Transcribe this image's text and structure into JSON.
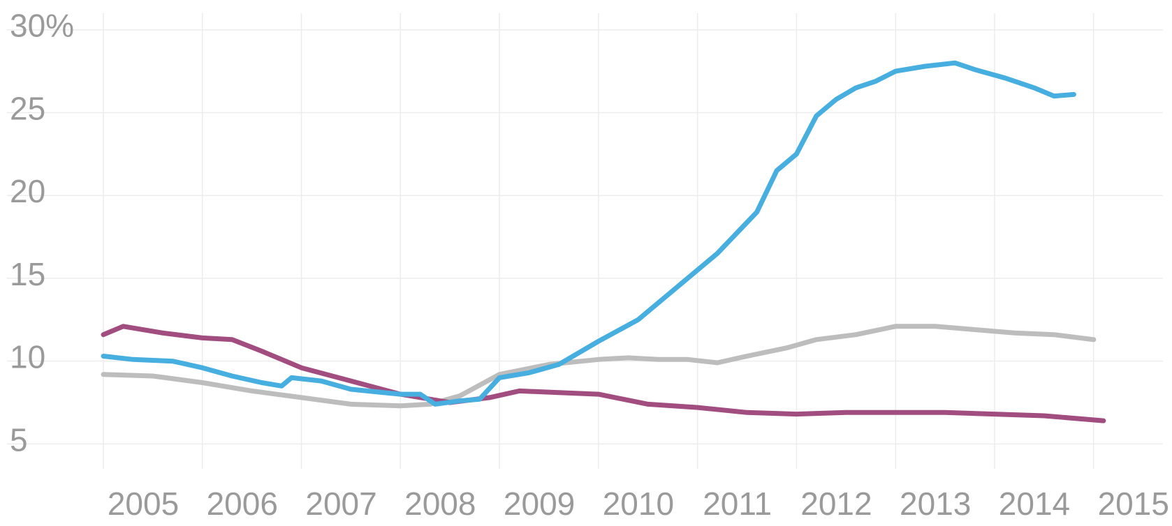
{
  "chart_data": {
    "type": "line",
    "title": "",
    "xlabel": "",
    "ylabel": "",
    "xlim": [
      2005,
      2015.7
    ],
    "ylim": [
      3.5,
      31
    ],
    "grid": true,
    "legend": "none",
    "x_ticks": [
      {
        "value": 2005,
        "label": "2005"
      },
      {
        "value": 2006,
        "label": "2006"
      },
      {
        "value": 2007,
        "label": "2007"
      },
      {
        "value": 2008,
        "label": "2008"
      },
      {
        "value": 2009,
        "label": "2009"
      },
      {
        "value": 2010,
        "label": "2010"
      },
      {
        "value": 2011,
        "label": "2011"
      },
      {
        "value": 2012,
        "label": "2012"
      },
      {
        "value": 2013,
        "label": "2013"
      },
      {
        "value": 2014,
        "label": "2014"
      },
      {
        "value": 2015,
        "label": "2015"
      }
    ],
    "y_ticks": [
      {
        "value": 5,
        "label": "5"
      },
      {
        "value": 10,
        "label": "10"
      },
      {
        "value": 15,
        "label": "15"
      },
      {
        "value": 20,
        "label": "20"
      },
      {
        "value": 25,
        "label": "25"
      },
      {
        "value": 30,
        "label": "30%"
      }
    ],
    "series": [
      {
        "color": "#bdbdbd",
        "x": [
          2005.0,
          2005.5,
          2006.0,
          2006.5,
          2007.0,
          2007.5,
          2008.0,
          2008.3,
          2008.6,
          2009.0,
          2009.5,
          2010.0,
          2010.3,
          2010.6,
          2010.9,
          2011.2,
          2011.5,
          2011.9,
          2012.2,
          2012.6,
          2013.0,
          2013.4,
          2013.8,
          2014.2,
          2014.6,
          2015.0
        ],
        "y": [
          9.2,
          9.1,
          8.7,
          8.2,
          7.8,
          7.4,
          7.3,
          7.4,
          7.9,
          9.2,
          9.8,
          10.1,
          10.2,
          10.1,
          10.1,
          9.9,
          10.3,
          10.8,
          11.3,
          11.6,
          12.1,
          12.1,
          11.9,
          11.7,
          11.6,
          11.3
        ]
      },
      {
        "color": "#a24d80",
        "x": [
          2005.0,
          2005.2,
          2005.6,
          2006.0,
          2006.3,
          2006.6,
          2007.0,
          2007.5,
          2008.0,
          2008.5,
          2008.9,
          2009.2,
          2009.6,
          2010.0,
          2010.5,
          2011.0,
          2011.5,
          2012.0,
          2012.5,
          2013.0,
          2013.5,
          2014.0,
          2014.5,
          2015.1
        ],
        "y": [
          11.6,
          12.1,
          11.7,
          11.4,
          11.3,
          10.6,
          9.6,
          8.8,
          8.0,
          7.5,
          7.8,
          8.2,
          8.1,
          8.0,
          7.4,
          7.2,
          6.9,
          6.8,
          6.9,
          6.9,
          6.9,
          6.8,
          6.7,
          6.4
        ]
      },
      {
        "color": "#47aee0",
        "x": [
          2005.0,
          2005.3,
          2005.7,
          2006.0,
          2006.3,
          2006.6,
          2006.8,
          2006.9,
          2007.2,
          2007.5,
          2008.0,
          2008.2,
          2008.35,
          2008.6,
          2008.8,
          2009.0,
          2009.3,
          2009.6,
          2010.0,
          2010.4,
          2010.8,
          2011.2,
          2011.6,
          2011.8,
          2012.0,
          2012.2,
          2012.4,
          2012.6,
          2012.8,
          2013.0,
          2013.3,
          2013.6,
          2013.8,
          2014.1,
          2014.4,
          2014.6,
          2014.8
        ],
        "y": [
          10.3,
          10.1,
          10.0,
          9.6,
          9.1,
          8.7,
          8.5,
          9.0,
          8.8,
          8.3,
          8.0,
          8.0,
          7.4,
          7.6,
          7.7,
          9.0,
          9.3,
          9.8,
          11.2,
          12.5,
          14.5,
          16.5,
          19.0,
          21.5,
          22.5,
          24.8,
          25.8,
          26.5,
          26.9,
          27.5,
          27.8,
          28.0,
          27.6,
          27.1,
          26.5,
          26.0,
          26.1
        ]
      }
    ]
  }
}
